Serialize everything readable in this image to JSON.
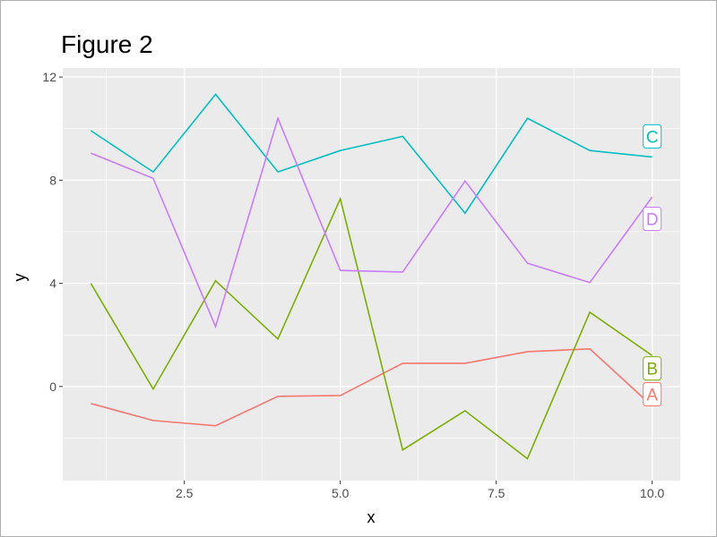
{
  "chart_data": {
    "type": "line",
    "title": "Figure 2",
    "xlabel": "x",
    "ylabel": "y",
    "xlim": [
      0.55,
      10.45
    ],
    "ylim": [
      -3.65,
      12.35
    ],
    "xticks": [
      2.5,
      5.0,
      7.5,
      10.0
    ],
    "xtick_labels": [
      "2.5",
      "5.0",
      "7.5",
      "10.0"
    ],
    "yticks": [
      0,
      4,
      8,
      12
    ],
    "ytick_labels": [
      "0",
      "4",
      "8",
      "12"
    ],
    "grid": true,
    "legend": "none (direct labels at right end of each line)",
    "x": [
      1,
      2,
      3,
      4,
      5,
      6,
      7,
      8,
      9,
      10
    ],
    "series": [
      {
        "name": "A",
        "color": "#F8766D",
        "values": [
          -0.66,
          -1.32,
          -1.52,
          -0.38,
          -0.35,
          0.9,
          0.9,
          1.35,
          1.46,
          -0.76
        ],
        "label_y": -0.3
      },
      {
        "name": "B",
        "color": "#7CAE00",
        "values": [
          4.0,
          -0.1,
          4.1,
          1.84,
          7.28,
          -2.46,
          -0.94,
          -2.8,
          2.88,
          1.2
        ],
        "label_y": 0.7
      },
      {
        "name": "C",
        "color": "#00BFC4",
        "values": [
          9.92,
          8.32,
          11.33,
          8.32,
          9.15,
          9.7,
          6.72,
          10.4,
          9.15,
          8.9
        ],
        "label_y": 9.7
      },
      {
        "name": "D",
        "color": "#C77CFF",
        "values": [
          9.05,
          8.07,
          2.32,
          10.4,
          4.5,
          4.44,
          7.97,
          4.78,
          4.03,
          7.35
        ],
        "label_y": 6.5
      }
    ]
  }
}
